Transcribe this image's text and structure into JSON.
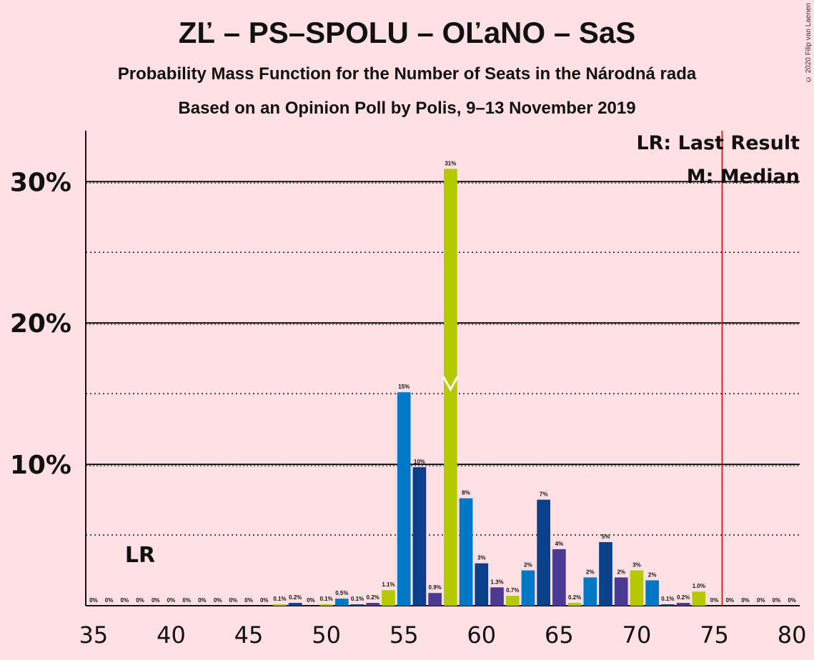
{
  "header": {
    "title": "ZĽ – PS–SPOLU – OĽaNO – SaS",
    "subtitle": "Probability Mass Function for the Number of Seats in the Národná rada",
    "poll": "Based on an Opinion Poll by Polis, 9–13 November 2019",
    "copyright": "© 2020 Filip van Laenen"
  },
  "legend": {
    "lr": "LR: Last Result",
    "m": "M: Median"
  },
  "colors": {
    "background": "#ffe0e3",
    "last_result_line": "#cc0000",
    "palette": [
      "#b5c900",
      "#0078c8",
      "#0a3f8a",
      "#4a3a93"
    ]
  },
  "chart_data": {
    "type": "bar",
    "x": [
      35,
      36,
      37,
      38,
      39,
      40,
      41,
      42,
      43,
      44,
      45,
      46,
      47,
      48,
      49,
      50,
      51,
      52,
      53,
      54,
      55,
      56,
      57,
      58,
      59,
      60,
      61,
      62,
      63,
      64,
      65,
      66,
      67,
      68,
      69,
      70,
      71,
      72,
      73,
      74,
      75,
      76,
      77,
      78,
      79,
      80
    ],
    "values": [
      0,
      0,
      0,
      0,
      0,
      0,
      0,
      0,
      0,
      0,
      0,
      0,
      0.1,
      0.2,
      0,
      0.1,
      0.5,
      0.1,
      0.2,
      1.1,
      15.1,
      9.8,
      0.9,
      30.9,
      7.6,
      3.0,
      1.3,
      0.7,
      2.5,
      7.5,
      4.0,
      0.2,
      2.0,
      4.5,
      2.0,
      2.5,
      1.8,
      0.1,
      0.2,
      1.0,
      0,
      0,
      0,
      0,
      0,
      0
    ],
    "labels": [
      "0%",
      "0%",
      "0%",
      "0%",
      "0%",
      "0%",
      "0%",
      "0%",
      "0%",
      "0%",
      "0%",
      "0%",
      "0.1%",
      "0.2%",
      "0%",
      "0.1%",
      "0.5%",
      "0.1%",
      "0.2%",
      "1.1%",
      "15%",
      "10%",
      "0.9%",
      "31%",
      "8%",
      "3%",
      "1.3%",
      "0.7%",
      "2%",
      "7%",
      "4%",
      "0.2%",
      "2%",
      "5%",
      "2%",
      "3%",
      "2%",
      "0.1%",
      "0.2%",
      "1.0%",
      "0%",
      "0%",
      "0%",
      "0%",
      "0%",
      "0%"
    ],
    "bar_colors": [
      "#b5c900",
      "#0078c8",
      "#0a3f8a",
      "#4a3a93",
      "#b5c900",
      "#0078c8",
      "#0a3f8a",
      "#4a3a93",
      "#b5c900",
      "#0078c8",
      "#0a3f8a",
      "#4a3a93",
      "#b5c900",
      "#0a3f8a",
      "#4a3a93",
      "#b5c900",
      "#0078c8",
      "#0a3f8a",
      "#4a3a93",
      "#b5c900",
      "#0078c8",
      "#0a3f8a",
      "#4a3a93",
      "#b5c900",
      "#0078c8",
      "#0a3f8a",
      "#4a3a93",
      "#b5c900",
      "#0078c8",
      "#0a3f8a",
      "#4a3a93",
      "#b5c900",
      "#0078c8",
      "#0a3f8a",
      "#4a3a93",
      "#b5c900",
      "#0078c8",
      "#0a3f8a",
      "#4a3a93",
      "#b5c900",
      "#0078c8",
      "#0a3f8a",
      "#4a3a93",
      "#b5c900",
      "#0078c8",
      "#0a3f8a"
    ],
    "xlim": [
      34.5,
      80.5
    ],
    "ylim": [
      0,
      33.6
    ],
    "y_ticks": [
      10,
      20,
      30
    ],
    "y_tick_labels": [
      "10%",
      "20%",
      "30%"
    ],
    "y_dotted_gridlines": [
      5,
      15,
      25
    ],
    "x_ticks": [
      35,
      40,
      45,
      50,
      55,
      60,
      65,
      70,
      75,
      80
    ],
    "x_tick_labels": [
      "35",
      "40",
      "45",
      "50",
      "55",
      "60",
      "65",
      "70",
      "75",
      "80"
    ],
    "median": 58,
    "median_label": "M",
    "last_result": 76,
    "last_result_label": "LR"
  }
}
